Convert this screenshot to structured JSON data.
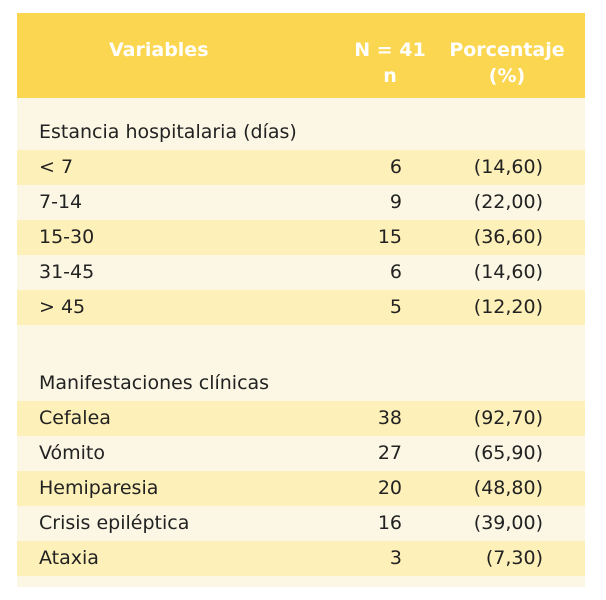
{
  "header": {
    "variables": "Variables",
    "n_line1": "N = 41",
    "n_line2": "n",
    "pct_line1": "Porcentaje",
    "pct_line2": "(%)"
  },
  "sections": [
    {
      "title": "Estancia hospitalaria (días)",
      "rows": [
        {
          "label": "< 7",
          "n": "6",
          "pct": "(14,60)"
        },
        {
          "label": "7-14",
          "n": "9",
          "pct": "(22,00)"
        },
        {
          "label": "15-30",
          "n": "15",
          "pct": "(36,60)"
        },
        {
          "label": "31-45",
          "n": "6",
          "pct": "(14,60)"
        },
        {
          "label": "> 45",
          "n": "5",
          "pct": "(12,20)"
        }
      ]
    },
    {
      "title": "Manifestaciones clínicas",
      "rows": [
        {
          "label": "Cefalea",
          "n": "38",
          "pct": "(92,70)"
        },
        {
          "label": "Vómito",
          "n": "27",
          "pct": "(65,90)"
        },
        {
          "label": "Hemiparesia",
          "n": "20",
          "pct": "(48,80)"
        },
        {
          "label": "Crisis epiléptica",
          "n": "16",
          "pct": "(39,00)"
        },
        {
          "label": "Ataxia",
          "n": "3",
          "pct": "(7,30)"
        }
      ]
    }
  ]
}
